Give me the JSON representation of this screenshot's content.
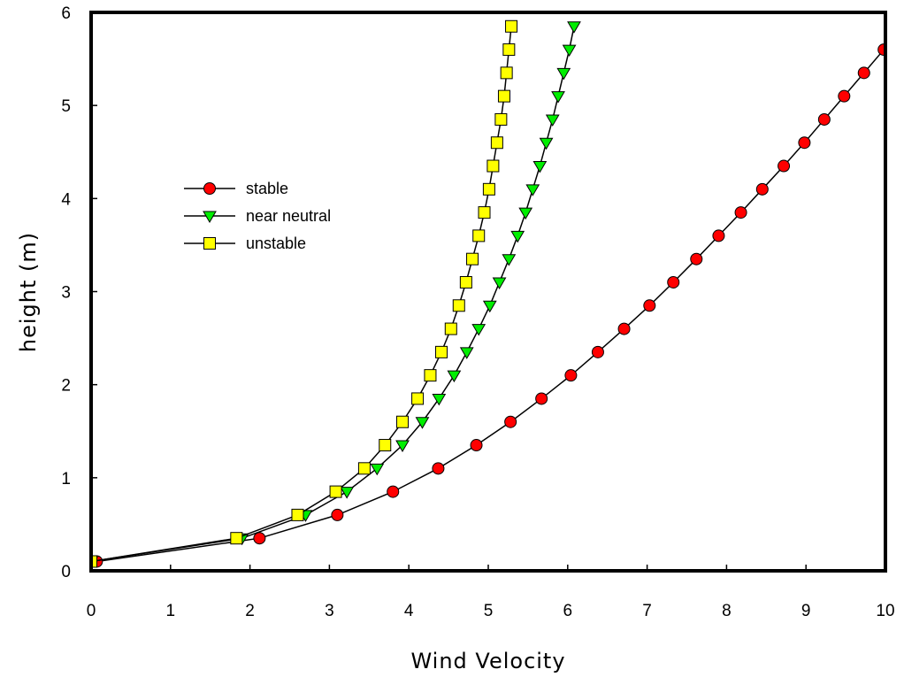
{
  "chart_data": {
    "type": "line",
    "title": "",
    "xlabel": "Wind Velocity",
    "ylabel": "height (m)",
    "xlim": [
      0,
      10
    ],
    "ylim": [
      0,
      6
    ],
    "xticks": [
      "0",
      "1",
      "2",
      "3",
      "4",
      "5",
      "6",
      "7",
      "8",
      "9",
      "10"
    ],
    "yticks": [
      "0",
      "1",
      "2",
      "3",
      "4",
      "5",
      "6"
    ],
    "grid": false,
    "legend_position": "upper-left",
    "series": [
      {
        "name": "stable",
        "marker": "circle",
        "color": "#ff0000",
        "x": [
          0.07,
          2.12,
          3.1,
          3.8,
          4.37,
          4.85,
          5.28,
          5.67,
          6.04,
          6.38,
          6.71,
          7.03,
          7.33,
          7.62,
          7.9,
          8.18,
          8.45,
          8.72,
          8.98,
          9.23,
          9.48,
          9.73,
          9.98
        ],
        "y": [
          0.1,
          0.35,
          0.6,
          0.85,
          1.1,
          1.35,
          1.6,
          1.85,
          2.1,
          2.35,
          2.6,
          2.85,
          3.1,
          3.35,
          3.6,
          3.85,
          4.1,
          4.35,
          4.6,
          4.85,
          5.1,
          5.35,
          5.6
        ]
      },
      {
        "name": "near neutral",
        "marker": "triangle-down",
        "color": "#00ee00",
        "x": [
          0.0,
          1.9,
          2.7,
          3.22,
          3.6,
          3.92,
          4.17,
          4.38,
          4.57,
          4.73,
          4.88,
          5.02,
          5.14,
          5.26,
          5.37,
          5.47,
          5.56,
          5.65,
          5.73,
          5.81,
          5.88,
          5.95,
          6.02,
          6.08
        ],
        "y": [
          0.1,
          0.35,
          0.6,
          0.85,
          1.1,
          1.35,
          1.6,
          1.85,
          2.1,
          2.35,
          2.6,
          2.85,
          3.1,
          3.35,
          3.6,
          3.85,
          4.1,
          4.35,
          4.6,
          4.85,
          5.1,
          5.35,
          5.6,
          5.85
        ]
      },
      {
        "name": "unstable",
        "marker": "square",
        "color": "#ffff00",
        "x": [
          0.0,
          1.83,
          2.6,
          3.08,
          3.44,
          3.7,
          3.92,
          4.11,
          4.27,
          4.41,
          4.53,
          4.63,
          4.72,
          4.8,
          4.88,
          4.95,
          5.01,
          5.06,
          5.11,
          5.16,
          5.2,
          5.23,
          5.26,
          5.29
        ],
        "y": [
          0.1,
          0.35,
          0.6,
          0.85,
          1.1,
          1.35,
          1.6,
          1.85,
          2.1,
          2.35,
          2.6,
          2.85,
          3.1,
          3.35,
          3.6,
          3.85,
          4.1,
          4.35,
          4.6,
          4.85,
          5.1,
          5.35,
          5.6,
          5.85
        ]
      }
    ]
  }
}
